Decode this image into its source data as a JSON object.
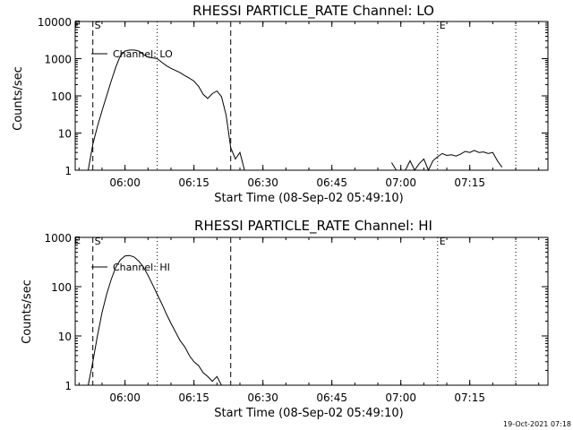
{
  "chart_data": [
    {
      "type": "line",
      "title": "RHESSI PARTICLE_RATE Channel: LO",
      "xlabel": "Start Time (08-Sep-02 05:49:10)",
      "ylabel": "Counts/sec",
      "yscale": "log",
      "ylim": [
        1,
        10000
      ],
      "xlim": [
        "05:49:10",
        "07:32:00"
      ],
      "grid": false,
      "legend_position": "top-left",
      "x_ticks": [
        "06:00",
        "06:15",
        "06:30",
        "06:45",
        "07:00",
        "07:15"
      ],
      "y_ticks": [
        "1",
        "10",
        "100",
        "1000",
        "10000"
      ],
      "markers": [
        {
          "label": "S",
          "time": "05:53:00",
          "style": "dashed"
        },
        {
          "label": "",
          "time": "06:07:00",
          "style": "dotted"
        },
        {
          "label": "",
          "time": "06:23:00",
          "style": "dashed"
        },
        {
          "label": "E",
          "time": "07:08:00",
          "style": "dotted"
        },
        {
          "label": "",
          "time": "07:25:00",
          "style": "dotted"
        }
      ],
      "corner_label": "E",
      "series": [
        {
          "name": "Channel: LO",
          "x": [
            "05:52:00",
            "05:53:00",
            "05:54:00",
            "05:55:00",
            "05:56:00",
            "05:57:00",
            "05:58:00",
            "05:59:00",
            "06:00:00",
            "06:01:00",
            "06:02:00",
            "06:03:00",
            "06:04:00",
            "06:05:00",
            "06:06:00",
            "06:07:00",
            "06:08:00",
            "06:09:00",
            "06:10:00",
            "06:11:00",
            "06:12:00",
            "06:13:00",
            "06:14:00",
            "06:15:00",
            "06:16:00",
            "06:17:00",
            "06:18:00",
            "06:19:00",
            "06:20:00",
            "06:21:00",
            "06:22:00",
            "06:23:00",
            "06:24:00",
            "06:25:00",
            "06:26:00"
          ],
          "values": [
            1,
            5,
            15,
            40,
            100,
            250,
            600,
            1200,
            1600,
            1700,
            1700,
            1600,
            1300,
            1100,
            1050,
            1000,
            800,
            650,
            550,
            480,
            420,
            350,
            300,
            250,
            180,
            110,
            85,
            115,
            135,
            95,
            30,
            4,
            2,
            3,
            1
          ]
        },
        {
          "name": "",
          "x": [
            "06:58:00",
            "06:59:00",
            "07:00:00",
            "07:01:00",
            "07:02:00",
            "07:03:00",
            "07:04:00",
            "07:05:00",
            "07:06:00",
            "07:07:00",
            "07:08:00",
            "07:09:00",
            "07:10:00",
            "07:11:00",
            "07:12:00",
            "07:13:00",
            "07:14:00",
            "07:15:00",
            "07:16:00",
            "07:17:00",
            "07:18:00",
            "07:19:00",
            "07:20:00",
            "07:21:00",
            "07:22:00"
          ],
          "values": [
            1.6,
            1,
            1,
            1,
            1.8,
            1,
            1.5,
            2,
            1,
            1.8,
            2.3,
            2.8,
            2.5,
            2.6,
            2.4,
            2.7,
            3.2,
            3.0,
            3.4,
            3.0,
            3.1,
            2.8,
            3.0,
            1.8,
            1.2
          ]
        }
      ]
    },
    {
      "type": "line",
      "title": "RHESSI PARTICLE_RATE Channel: HI",
      "xlabel": "Start Time (08-Sep-02 05:49:10)",
      "ylabel": "Counts/sec",
      "yscale": "log",
      "ylim": [
        1,
        1000
      ],
      "xlim": [
        "05:49:10",
        "07:32:00"
      ],
      "grid": false,
      "legend_position": "top-left",
      "x_ticks": [
        "06:00",
        "06:15",
        "06:30",
        "06:45",
        "07:00",
        "07:15"
      ],
      "y_ticks": [
        "1",
        "10",
        "100",
        "1000"
      ],
      "markers": [
        {
          "label": "S",
          "time": "05:53:00",
          "style": "dashed"
        },
        {
          "label": "",
          "time": "06:07:00",
          "style": "dotted"
        },
        {
          "label": "",
          "time": "06:23:00",
          "style": "dashed"
        },
        {
          "label": "E",
          "time": "07:08:00",
          "style": "dotted"
        },
        {
          "label": "",
          "time": "07:25:00",
          "style": "dotted"
        }
      ],
      "corner_label": "E",
      "series": [
        {
          "name": "Channel: HI",
          "x": [
            "05:52:00",
            "05:53:00",
            "05:54:00",
            "05:55:00",
            "05:56:00",
            "05:57:00",
            "05:58:00",
            "05:59:00",
            "06:00:00",
            "06:01:00",
            "06:02:00",
            "06:03:00",
            "06:04:00",
            "06:05:00",
            "06:06:00",
            "06:07:00",
            "06:08:00",
            "06:09:00",
            "06:10:00",
            "06:11:00",
            "06:12:00",
            "06:13:00",
            "06:14:00",
            "06:15:00",
            "06:16:00",
            "06:17:00",
            "06:18:00",
            "06:19:00",
            "06:20:00",
            "06:21:00",
            "06:22:00"
          ],
          "values": [
            1,
            3,
            10,
            30,
            70,
            140,
            250,
            350,
            420,
            430,
            400,
            330,
            250,
            170,
            110,
            70,
            45,
            28,
            18,
            12,
            8,
            6,
            4,
            3,
            2.5,
            1.8,
            1.5,
            1.2,
            1.5,
            1,
            1
          ]
        }
      ]
    }
  ],
  "timestamp": "19-Oct-2021 07:18"
}
